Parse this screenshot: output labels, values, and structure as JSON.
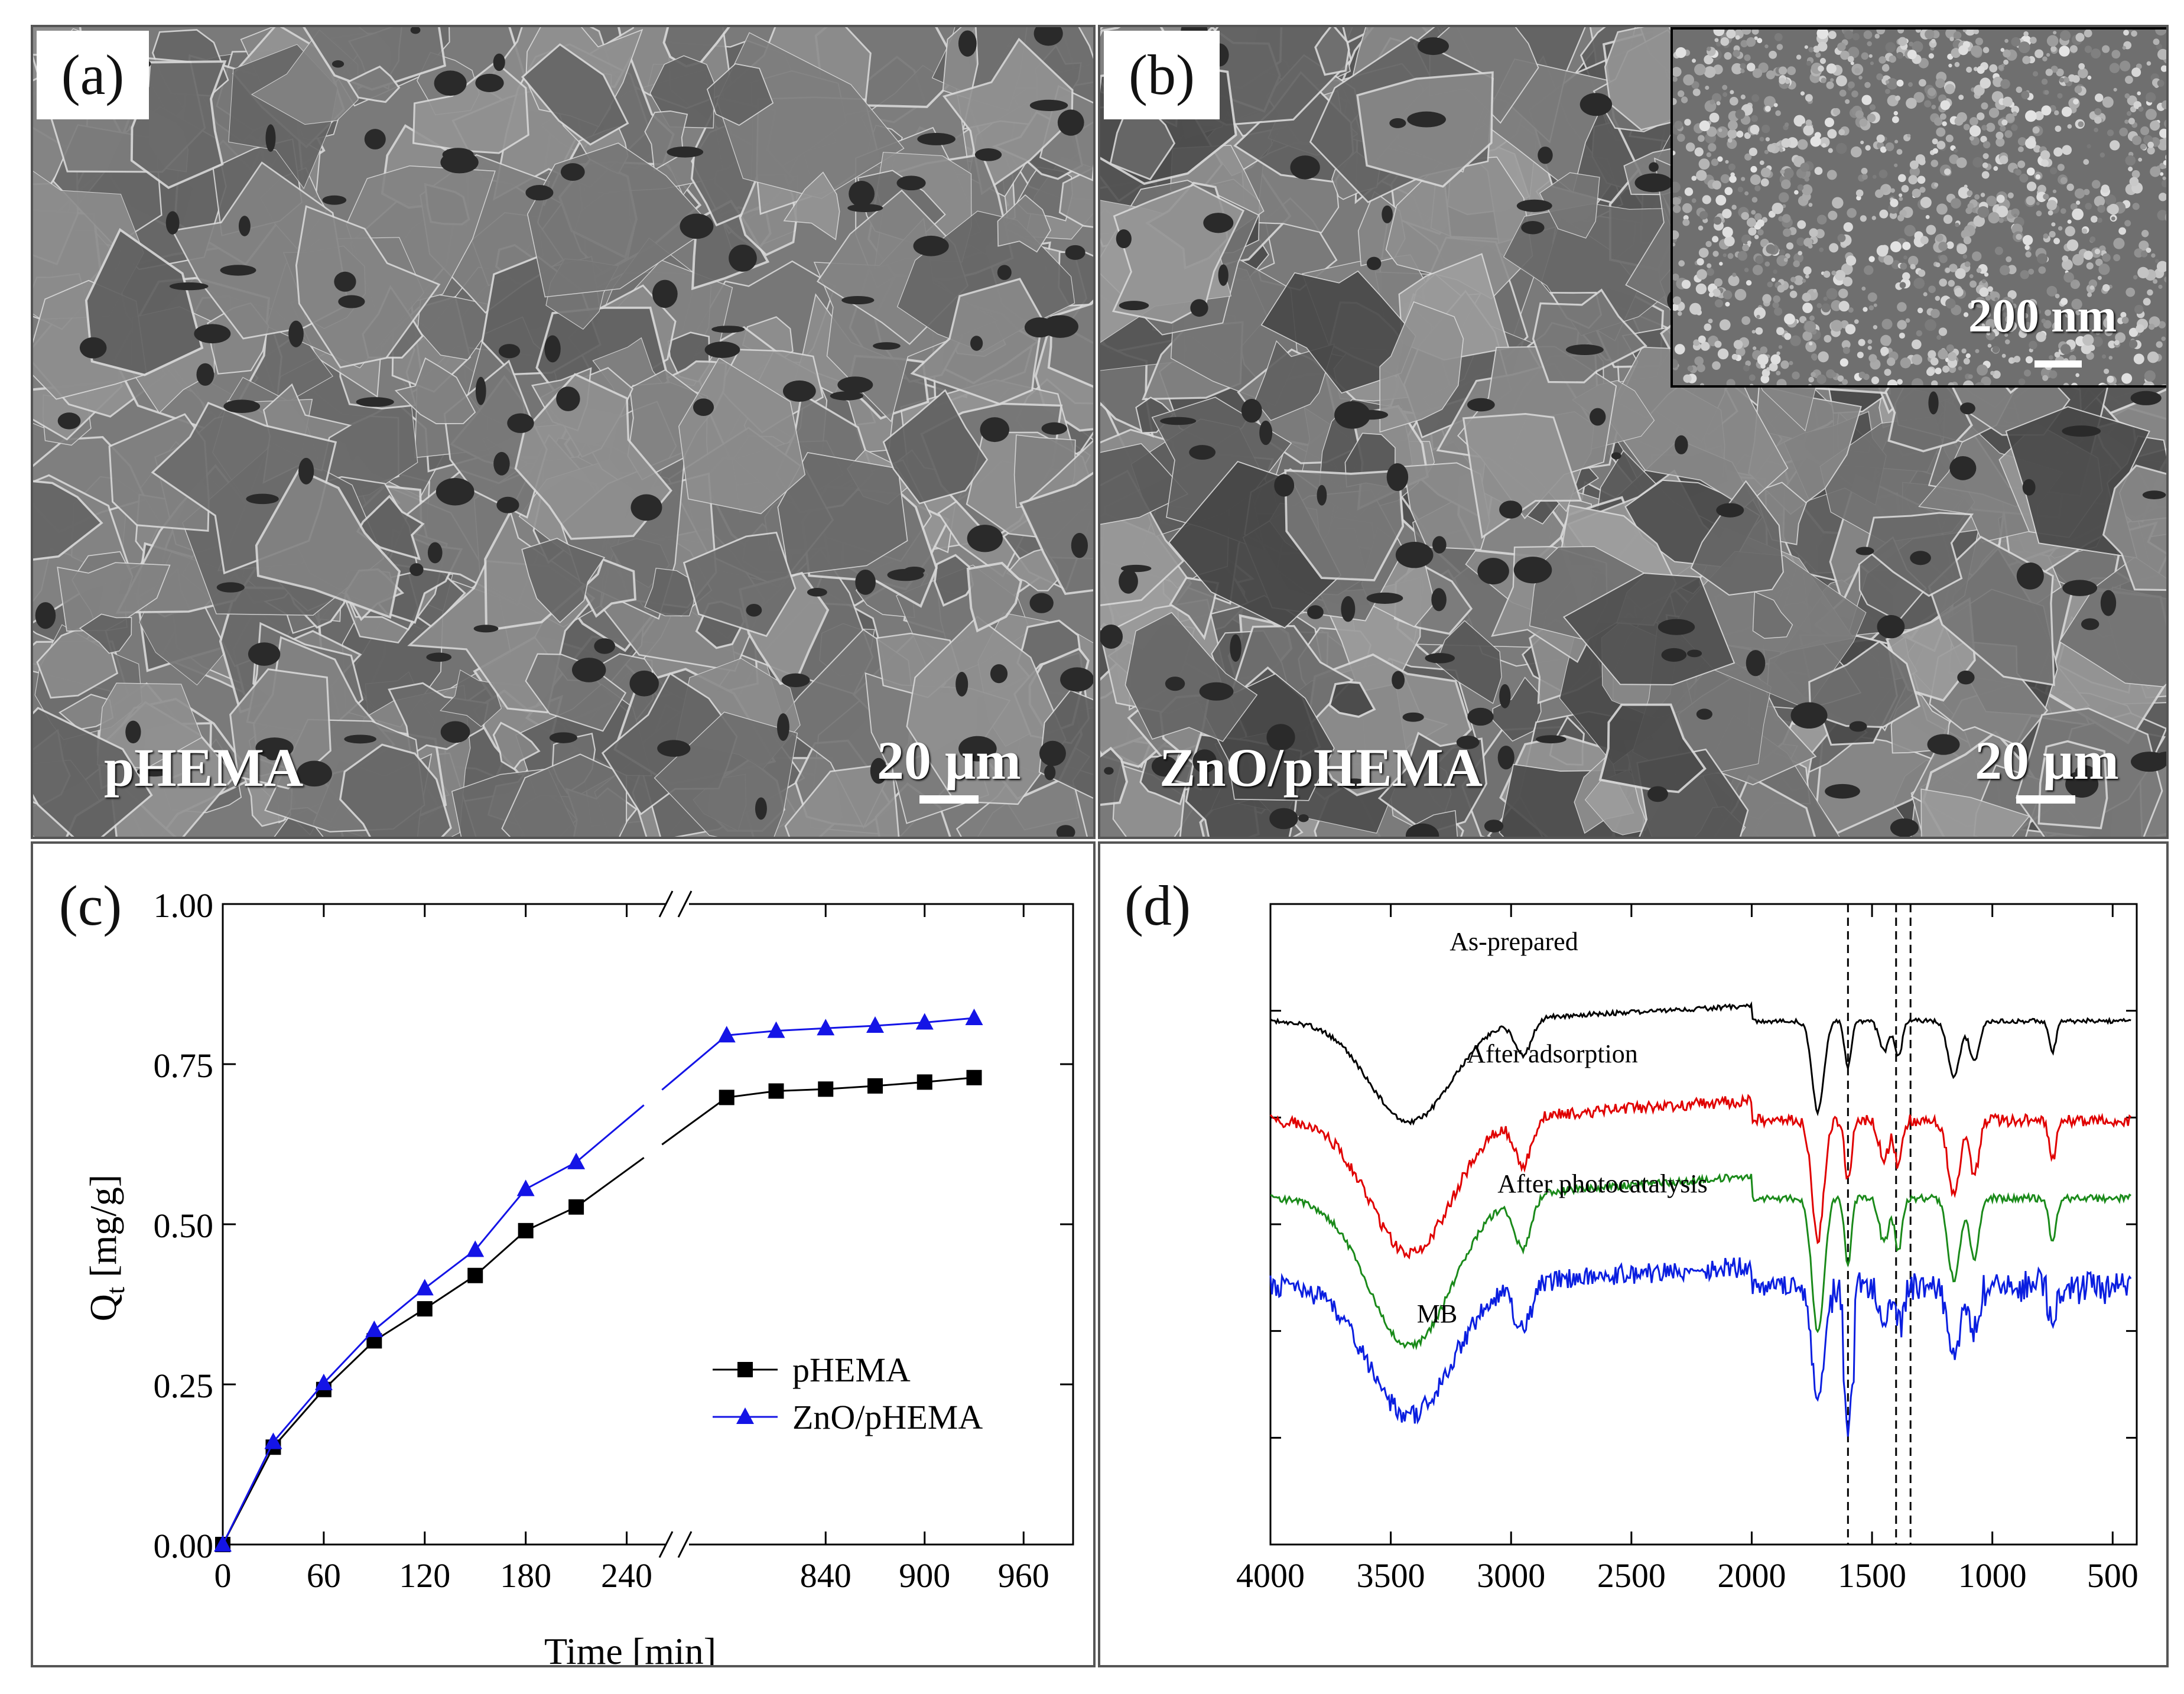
{
  "panels": {
    "a": {
      "label": "(a)",
      "sample": "pHEMA",
      "scale": "20 μm"
    },
    "b": {
      "label": "(b)",
      "sample": "ZnO/pHEMA",
      "scale": "20 μm",
      "inset_scale": "200 nm"
    },
    "c": {
      "label": "(c)"
    },
    "d": {
      "label": "(d)"
    }
  },
  "colors": {
    "black": "#000000",
    "blue": "#1414e6",
    "red": "#e00000",
    "green": "#1a8a1a",
    "spectrum_blue": "#0a1ee0"
  },
  "chart_data": [
    {
      "type": "line",
      "xlabel": "Time [min]",
      "ylabel": "Q_t [mg/g]",
      "ylabel_main": "Q",
      "ylabel_sub": "t",
      "ylabel_rest": " [mg/g]",
      "ylim": [
        0.0,
        1.0
      ],
      "axis_break": true,
      "x_ticks_left": [
        "0",
        "60",
        "120",
        "180",
        "240"
      ],
      "x_ticks_right": [
        "840",
        "900",
        "960"
      ],
      "y_ticks": [
        "0.00",
        "0.25",
        "0.50",
        "0.75",
        "1.00"
      ],
      "legend_position": "bottom-right",
      "series": [
        {
          "name": "pHEMA",
          "marker": "square",
          "color": "#000000",
          "x": [
            0,
            30,
            60,
            90,
            120,
            150,
            180,
            210,
            780,
            810,
            840,
            870,
            900,
            930
          ],
          "y": [
            0.0,
            0.152,
            0.242,
            0.318,
            0.368,
            0.42,
            0.49,
            0.527,
            0.698,
            0.708,
            0.711,
            0.716,
            0.722,
            0.729
          ]
        },
        {
          "name": "ZnO/pHEMA",
          "marker": "triangle",
          "color": "#1414e6",
          "x": [
            0,
            30,
            60,
            90,
            120,
            150,
            180,
            210,
            780,
            810,
            840,
            870,
            900,
            930
          ],
          "y": [
            0.0,
            0.16,
            0.252,
            0.335,
            0.4,
            0.46,
            0.555,
            0.597,
            0.795,
            0.802,
            0.806,
            0.81,
            0.815,
            0.822
          ]
        }
      ]
    },
    {
      "type": "line",
      "xlim": [
        4000,
        400
      ],
      "x_ticks": [
        "4000",
        "3500",
        "3000",
        "2500",
        "2000",
        "1500",
        "1000",
        "500"
      ],
      "vlines": [
        1600,
        1400,
        1340
      ],
      "series": [
        {
          "name": "As-prepared",
          "color": "#000000"
        },
        {
          "name": "After adsorption",
          "color": "#e00000"
        },
        {
          "name": "After photocatalysis",
          "color": "#1a8a1a"
        },
        {
          "name": "MB",
          "color": "#0a1ee0"
        }
      ]
    }
  ]
}
